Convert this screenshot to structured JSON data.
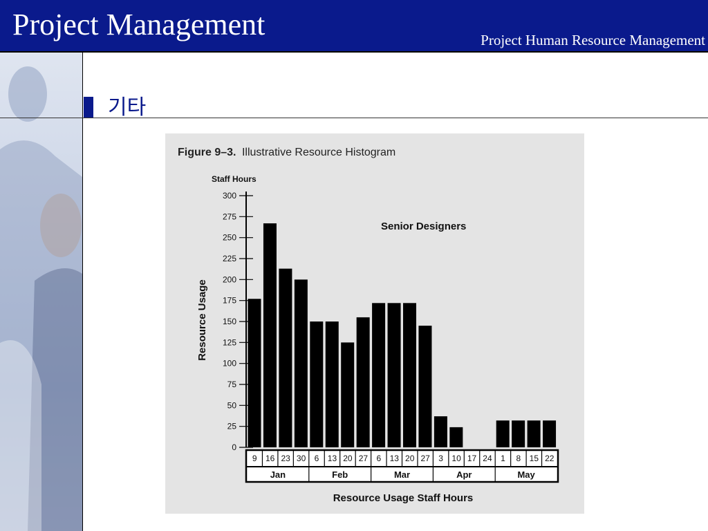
{
  "header": {
    "title": "Project Management",
    "subtitle": "Project Human Resource Management"
  },
  "section": {
    "title": "기타"
  },
  "figure": {
    "caption_bold": "Figure 9–3.",
    "caption_text": "Illustrative Resource Histogram"
  },
  "chart_data": {
    "type": "bar",
    "title": "Senior Designers",
    "ylabel": "Resource Usage",
    "yunit": "Staff Hours",
    "xlabel": "Resource Usage Staff Hours",
    "ylim": [
      0,
      300
    ],
    "yticks": [
      0,
      25,
      50,
      75,
      100,
      125,
      150,
      175,
      200,
      225,
      250,
      275,
      300
    ],
    "categories": [
      "9",
      "16",
      "23",
      "30",
      "6",
      "13",
      "20",
      "27",
      "6",
      "13",
      "20",
      "27",
      "3",
      "10",
      "17",
      "24",
      "1",
      "8",
      "15",
      "22"
    ],
    "months": [
      {
        "label": "Jan",
        "count": 4
      },
      {
        "label": "Feb",
        "count": 4
      },
      {
        "label": "Mar",
        "count": 4
      },
      {
        "label": "Apr",
        "count": 4
      },
      {
        "label": "May",
        "count": 4
      }
    ],
    "values": [
      177,
      267,
      213,
      200,
      150,
      150,
      125,
      155,
      172,
      172,
      172,
      145,
      37,
      24,
      0,
      0,
      32,
      32,
      32,
      32
    ],
    "grid": false,
    "legend": "none"
  }
}
